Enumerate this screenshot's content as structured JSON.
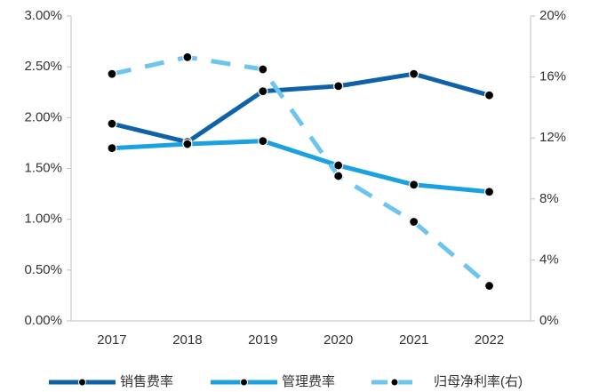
{
  "chart_data": {
    "type": "line",
    "categories": [
      "2017",
      "2018",
      "2019",
      "2020",
      "2021",
      "2022"
    ],
    "series": [
      {
        "name": "销售费率",
        "color": "#0f62a8",
        "values": [
          1.94,
          1.76,
          2.26,
          2.31,
          2.43,
          2.22
        ]
      },
      {
        "name": "管理费率",
        "color": "#1ba1e2",
        "values": [
          1.7,
          1.74,
          1.77,
          1.53,
          1.34,
          1.27
        ]
      },
      {
        "name": "归母净利率(右)",
        "color": "#6cc4ef",
        "axis": "y2",
        "dashed": true,
        "values": [
          16.2,
          17.3,
          16.5,
          9.5,
          6.5,
          2.3
        ]
      }
    ],
    "ylim": [
      0,
      3
    ],
    "yticks": [
      {
        "value": 0,
        "label": "0.00%"
      },
      {
        "value": 0.5,
        "label": "0.50%"
      },
      {
        "value": 1,
        "label": "1.00%"
      },
      {
        "value": 1.5,
        "label": "1.50%"
      },
      {
        "value": 2,
        "label": "2.00%"
      },
      {
        "value": 2.5,
        "label": "2.50%"
      },
      {
        "value": 3,
        "label": "3.00%"
      }
    ],
    "y2lim": [
      0,
      20
    ],
    "y2ticks": [
      {
        "value": 0,
        "label": "0%"
      },
      {
        "value": 4,
        "label": "4%"
      },
      {
        "value": 8,
        "label": "8%"
      },
      {
        "value": 12,
        "label": "12%"
      },
      {
        "value": 16,
        "label": "16%"
      },
      {
        "value": 20,
        "label": "20%"
      }
    ],
    "grid": false,
    "legend": "bottom"
  }
}
